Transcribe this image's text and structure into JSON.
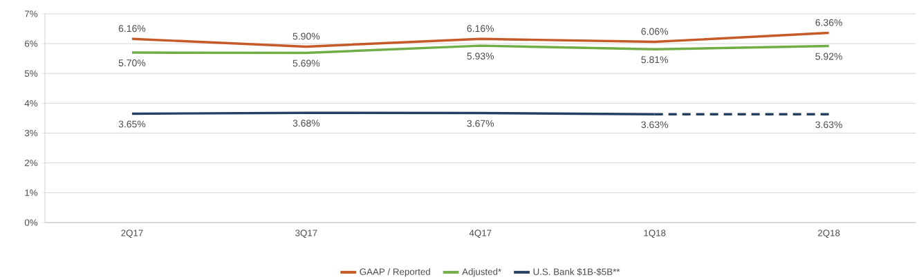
{
  "chart_data": {
    "type": "line",
    "categories": [
      "2Q17",
      "3Q17",
      "4Q17",
      "1Q18",
      "2Q18"
    ],
    "ylim": [
      0,
      7
    ],
    "yticks": [
      {
        "value": 0,
        "label": "0%"
      },
      {
        "value": 1,
        "label": "1%"
      },
      {
        "value": 2,
        "label": "2%"
      },
      {
        "value": 3,
        "label": "3%"
      },
      {
        "value": 4,
        "label": "4%"
      },
      {
        "value": 5,
        "label": "5%"
      },
      {
        "value": 6,
        "label": "6%"
      },
      {
        "value": 7,
        "label": "7%"
      }
    ],
    "grid": "y",
    "legend": "bottom",
    "marker": "none",
    "line_style": "solid",
    "series": [
      {
        "name": "GAAP / Reported",
        "color": "#c55a28",
        "values": [
          6.16,
          5.9,
          6.16,
          6.06,
          6.36
        ],
        "value_labels": [
          "6.16%",
          "5.90%",
          "6.16%",
          "6.06%",
          "6.36%"
        ]
      },
      {
        "name": "Adjusted*",
        "color": "#70ad47",
        "values": [
          5.7,
          5.69,
          5.93,
          5.81,
          5.92
        ],
        "value_labels": [
          "5.70%",
          "5.69%",
          "5.93%",
          "5.81%",
          "5.92%"
        ]
      },
      {
        "name": "U.S. Bank $1B-$5B**",
        "color": "#264063",
        "values": [
          3.65,
          3.68,
          3.67,
          3.63,
          null
        ],
        "value_labels": [
          "3.65%",
          "3.68%",
          "3.67%",
          "3.63%",
          null
        ]
      },
      {
        "color": "#264063",
        "line_style": "dashed",
        "values": [
          null,
          null,
          null,
          3.63,
          3.63
        ],
        "value_labels": [
          null,
          null,
          null,
          null,
          "3.63%"
        ]
      }
    ]
  }
}
